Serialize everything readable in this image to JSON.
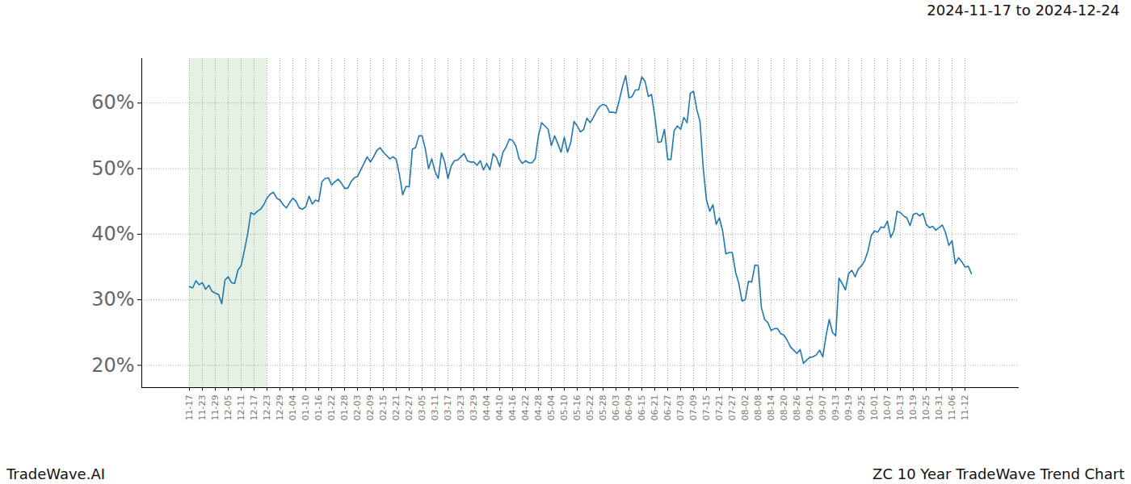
{
  "chart_data": {
    "type": "line",
    "title": "ZC 10 Year TradeWave Trend Chart",
    "subtitle": "2024-11-17 to 2024-12-24",
    "caption": "TradeWave.AI",
    "color": "#1f77b4",
    "grid": true,
    "highlight": {
      "from": "11-17",
      "to": "12-23",
      "color": "#e3efe3"
    },
    "ylim": [
      16.6,
      66.8
    ],
    "yticks": [
      {
        "value": 20,
        "label": "20%"
      },
      {
        "value": 30,
        "label": "30%"
      },
      {
        "value": 40,
        "label": "40%"
      },
      {
        "value": 50,
        "label": "50%"
      },
      {
        "value": 60,
        "label": "60%"
      }
    ],
    "categories": [
      "11-17",
      null,
      null,
      null,
      "11-23",
      null,
      null,
      null,
      "11-29",
      null,
      null,
      null,
      "12-05",
      null,
      null,
      null,
      "12-11",
      null,
      null,
      null,
      "12-17",
      null,
      null,
      null,
      "12-23",
      null,
      null,
      null,
      "12-29",
      null,
      null,
      null,
      "01-04",
      null,
      null,
      null,
      "01-10",
      null,
      null,
      null,
      "01-16",
      null,
      null,
      null,
      "01-22",
      null,
      null,
      null,
      "01-28",
      null,
      null,
      null,
      "02-03",
      null,
      null,
      null,
      "02-09",
      null,
      null,
      null,
      "02-15",
      null,
      null,
      null,
      "02-21",
      null,
      null,
      null,
      "02-27",
      null,
      null,
      null,
      "03-05",
      null,
      null,
      null,
      "03-11",
      null,
      null,
      null,
      "03-17",
      null,
      null,
      null,
      "03-23",
      null,
      null,
      null,
      "03-29",
      null,
      null,
      null,
      "04-04",
      null,
      null,
      null,
      "04-10",
      null,
      null,
      null,
      "04-16",
      null,
      null,
      null,
      "04-22",
      null,
      null,
      null,
      "04-28",
      null,
      null,
      null,
      "05-04",
      null,
      null,
      null,
      "05-10",
      null,
      null,
      null,
      "05-16",
      null,
      null,
      null,
      "05-22",
      null,
      null,
      null,
      "05-28",
      null,
      null,
      null,
      "06-03",
      null,
      null,
      null,
      "06-09",
      null,
      null,
      null,
      "06-15",
      null,
      null,
      null,
      "06-21",
      null,
      null,
      null,
      "06-27",
      null,
      null,
      null,
      "07-03",
      null,
      null,
      null,
      "07-09",
      null,
      null,
      null,
      "07-15",
      null,
      null,
      null,
      "07-21",
      null,
      null,
      null,
      "07-27",
      null,
      null,
      null,
      "08-02",
      null,
      null,
      null,
      "08-08",
      null,
      null,
      null,
      "08-14",
      null,
      null,
      null,
      "08-20",
      null,
      null,
      null,
      "08-26",
      null,
      null,
      null,
      "09-01",
      null,
      null,
      null,
      "09-07",
      null,
      null,
      null,
      "09-13",
      null,
      null,
      null,
      "09-19",
      null,
      null,
      null,
      "09-25",
      null,
      null,
      null,
      "10-01",
      null,
      null,
      null,
      "10-07",
      null,
      null,
      null,
      "10-13",
      null,
      null,
      null,
      "10-19",
      null,
      null,
      null,
      "10-25",
      null,
      null,
      null,
      "10-31",
      null,
      null,
      null,
      "11-06",
      null,
      null,
      null,
      "11-12",
      null,
      null
    ],
    "values": [
      32.0,
      31.8,
      32.9,
      32.3,
      32.6,
      31.6,
      32.2,
      31.3,
      31.0,
      30.8,
      29.4,
      33.0,
      33.5,
      32.6,
      32.5,
      34.5,
      35.2,
      37.5,
      40.0,
      43.3,
      43.0,
      43.5,
      43.8,
      44.5,
      45.5,
      46.1,
      46.4,
      45.5,
      45.2,
      44.5,
      44.0,
      44.8,
      45.5,
      45.0,
      44.0,
      43.8,
      44.2,
      45.8,
      44.6,
      45.2,
      45.0,
      48.0,
      48.5,
      48.6,
      47.5,
      48.0,
      48.4,
      47.8,
      47.0,
      47.0,
      48.0,
      48.6,
      48.8,
      49.8,
      50.8,
      51.8,
      51.0,
      51.8,
      52.8,
      53.2,
      52.5,
      52.0,
      51.5,
      51.8,
      51.4,
      49.0,
      46.0,
      47.3,
      47.2,
      53.0,
      53.2,
      55.0,
      55.0,
      53.0,
      50.0,
      51.5,
      49.5,
      48.5,
      52.4,
      51.0,
      48.5,
      50.4,
      51.2,
      51.3,
      51.8,
      52.3,
      51.2,
      51.0,
      51.0,
      50.5,
      51.2,
      49.8,
      50.8,
      49.8,
      52.3,
      51.7,
      50.3,
      52.5,
      53.3,
      54.5,
      54.3,
      53.5,
      51.5,
      50.8,
      51.2,
      50.9,
      50.9,
      51.5,
      55.0,
      57.0,
      56.5,
      56.0,
      53.5,
      55.0,
      53.8,
      52.5,
      54.8,
      52.5,
      54.0,
      57.2,
      56.5,
      55.6,
      56.0,
      57.7,
      57.0,
      57.8,
      58.8,
      59.5,
      59.8,
      59.6,
      58.6,
      58.6,
      58.5,
      60.4,
      62.5,
      64.2,
      60.8,
      61.0,
      62.0,
      62.0,
      64.0,
      63.3,
      61.0,
      61.3,
      58.0,
      54.0,
      54.1,
      56.0,
      51.4,
      51.4,
      55.8,
      56.5,
      56.0,
      57.8,
      57.0,
      61.5,
      61.8,
      59.0,
      57.2,
      50.0,
      45.2,
      43.5,
      44.5,
      41.5,
      42.5,
      40.5,
      37.0,
      37.2,
      37.2,
      34.2,
      32.5,
      29.8,
      30.0,
      32.8,
      32.7,
      35.3,
      35.2,
      28.8,
      27.0,
      26.5,
      25.3,
      25.6,
      25.6,
      24.8,
      24.6,
      23.8,
      22.8,
      22.3,
      21.8,
      22.4,
      20.3,
      20.8,
      21.2,
      21.3,
      21.6,
      22.3,
      21.3,
      24.5,
      27.0,
      25.0,
      24.5,
      33.3,
      32.5,
      31.5,
      34.0,
      34.5,
      33.5,
      34.7,
      35.2,
      36.0,
      37.5,
      39.8,
      40.5,
      40.3,
      41.1,
      41.0,
      42.0,
      39.5,
      40.5,
      43.5,
      43.3,
      42.8,
      42.5,
      41.3,
      43.0,
      43.2,
      42.8,
      43.2,
      41.5,
      41.0,
      41.2,
      40.6,
      41.0,
      41.4,
      40.2,
      38.3,
      39.0,
      35.5,
      36.4,
      35.8,
      35.0,
      35.1,
      34.0
    ]
  }
}
